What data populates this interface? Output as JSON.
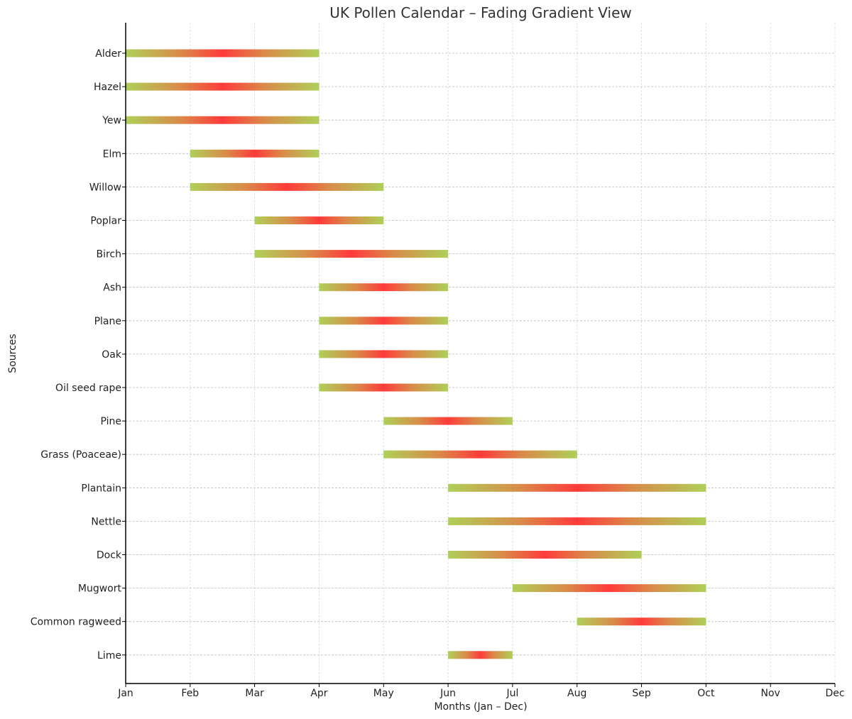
{
  "chart_data": {
    "type": "bar",
    "subtype": "horizontal-timeline-gradient",
    "title": "UK Pollen Calendar – Fading Gradient View",
    "xlabel": "Months (Jan – Dec)",
    "ylabel": "Sources",
    "xlim": [
      0,
      11
    ],
    "x_ticks": [
      "Jan",
      "Feb",
      "Mar",
      "Apr",
      "May",
      "Jun",
      "Jul",
      "Aug",
      "Sep",
      "Oct",
      "Nov",
      "Dec"
    ],
    "grid": true,
    "colors": {
      "low": "#a8cc4a",
      "mid": "#d6823a",
      "peak": "#ff2a2a"
    },
    "series": [
      {
        "name": "Alder",
        "start_month": "Jan",
        "end_month": "Apr"
      },
      {
        "name": "Hazel",
        "start_month": "Jan",
        "end_month": "Apr"
      },
      {
        "name": "Yew",
        "start_month": "Jan",
        "end_month": "Apr"
      },
      {
        "name": "Elm",
        "start_month": "Feb",
        "end_month": "Apr"
      },
      {
        "name": "Willow",
        "start_month": "Feb",
        "end_month": "May"
      },
      {
        "name": "Poplar",
        "start_month": "Mar",
        "end_month": "May"
      },
      {
        "name": "Birch",
        "start_month": "Mar",
        "end_month": "Jun"
      },
      {
        "name": "Ash",
        "start_month": "Apr",
        "end_month": "Jun"
      },
      {
        "name": "Plane",
        "start_month": "Apr",
        "end_month": "Jun"
      },
      {
        "name": "Oak",
        "start_month": "Apr",
        "end_month": "Jun"
      },
      {
        "name": "Oil seed rape",
        "start_month": "Apr",
        "end_month": "Jun"
      },
      {
        "name": "Pine",
        "start_month": "May",
        "end_month": "Jul"
      },
      {
        "name": "Grass (Poaceae)",
        "start_month": "May",
        "end_month": "Aug"
      },
      {
        "name": "Plantain",
        "start_month": "Jun",
        "end_month": "Oct"
      },
      {
        "name": "Nettle",
        "start_month": "Jun",
        "end_month": "Oct"
      },
      {
        "name": "Dock",
        "start_month": "Jun",
        "end_month": "Sep"
      },
      {
        "name": "Mugwort",
        "start_month": "Jul",
        "end_month": "Oct"
      },
      {
        "name": "Common ragweed",
        "start_month": "Aug",
        "end_month": "Oct"
      },
      {
        "name": "Lime",
        "start_month": "Jun",
        "end_month": "Jul"
      }
    ]
  }
}
